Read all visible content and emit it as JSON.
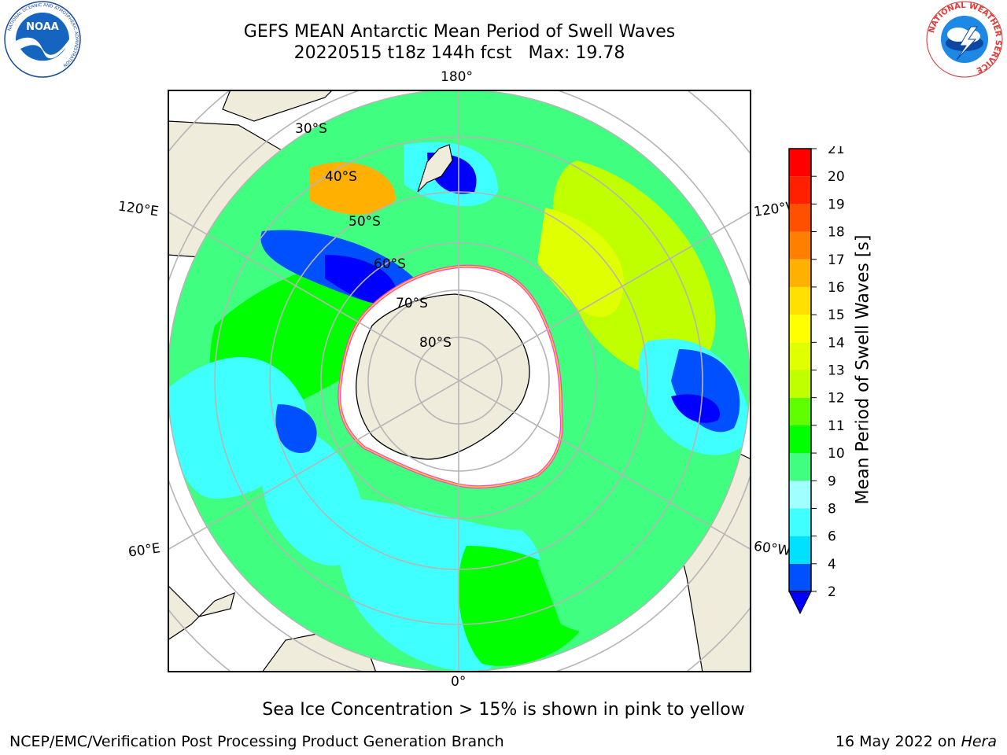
{
  "title_line1": "GEFS MEAN Antarctic Mean Period of Swell Waves",
  "title_line2": "20220515 t18z 144h fcst   Max: 19.78",
  "logos": {
    "noaa": {
      "text": "NOAA",
      "ring_text": "NATIONAL OCEANIC AND ATMOSPHERIC ADMINISTRATION",
      "bottom_text": "U.S. DEPARTMENT OF COMMERCE"
    },
    "nws": {
      "ring_text": "NATIONAL WEATHER SERVICE"
    }
  },
  "map": {
    "projection": "south-polar-stereographic",
    "longitude_labels": {
      "top": "180°",
      "bottom": "0°",
      "left_upper": "120°E",
      "left_lower": "60°E",
      "right_upper": "120°W",
      "right_lower": "60°W"
    },
    "latitude_labels": [
      "30°S",
      "40°S",
      "50°S",
      "60°S",
      "70°S",
      "80°S"
    ],
    "colors": {
      "land": "#efecdc",
      "ocean_edge": "#ffffff",
      "graticule": "#b5b5b5",
      "ice_edge_pink": "#ff40d0",
      "ice_edge_yellow": "#ffd020"
    }
  },
  "colorbar": {
    "label": "Mean Period of Swell Waves [s]",
    "ticks": [
      "2",
      "4",
      "6",
      "8",
      "9",
      "10",
      "11",
      "12",
      "13",
      "14",
      "15",
      "16",
      "17",
      "18",
      "19",
      "20",
      "21"
    ],
    "colors": [
      "#0050ff",
      "#00e0ff",
      "#40ffff",
      "#a0ffff",
      "#40ff80",
      "#00ff00",
      "#60ff00",
      "#c0ff00",
      "#e0ff00",
      "#ffff00",
      "#ffe000",
      "#ffb000",
      "#ff8000",
      "#ff5000",
      "#ff2000",
      "#ff0000"
    ],
    "extend_color": "#0000ff"
  },
  "footer": {
    "note": "Sea Ice Concentration > 15% is shown in pink to yellow",
    "branch": "NCEP/EMC/Verification Post Processing Product Generation Branch",
    "date": "16 May 2022 on",
    "host": "Hera"
  }
}
